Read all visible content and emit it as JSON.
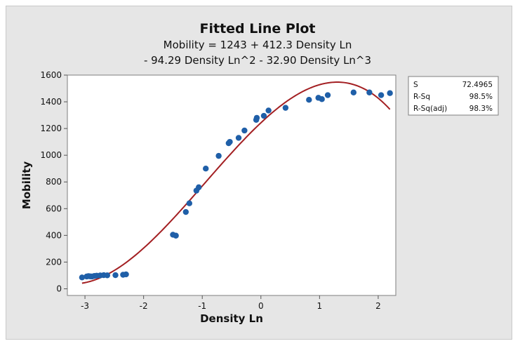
{
  "chart_data": {
    "type": "scatter",
    "title": "Fitted Line Plot",
    "subtitle_lines": [
      "Mobility = 1243 + 412.3 Density Ln",
      "- 94.29 Density Ln^2 - 32.90 Density Ln^3"
    ],
    "xlabel": "Density Ln",
    "ylabel": "Mobility",
    "xlim": [
      -3.3,
      2.3
    ],
    "ylim": [
      -50,
      1600
    ],
    "xticks": [
      -3,
      -2,
      -1,
      0,
      1,
      2
    ],
    "yticks": [
      0,
      200,
      400,
      600,
      800,
      1000,
      1200,
      1400,
      1600
    ],
    "grid": false,
    "fit": {
      "intercept": 1243,
      "b1": 412.3,
      "b2": -94.29,
      "b3": -32.9,
      "x_range": [
        -3.05,
        2.2
      ],
      "color": "#a31f22"
    },
    "series": [
      {
        "color": "#1f5fa8",
        "points": [
          [
            -3.05,
            85
          ],
          [
            -2.97,
            92
          ],
          [
            -2.94,
            95
          ],
          [
            -2.91,
            93
          ],
          [
            -2.88,
            92
          ],
          [
            -2.84,
            96
          ],
          [
            -2.8,
            98
          ],
          [
            -2.74,
            100
          ],
          [
            -2.68,
            102
          ],
          [
            -2.62,
            101
          ],
          [
            -2.48,
            102
          ],
          [
            -2.35,
            105
          ],
          [
            -2.3,
            108
          ],
          [
            -1.5,
            405
          ],
          [
            -1.45,
            398
          ],
          [
            -1.28,
            575
          ],
          [
            -1.22,
            640
          ],
          [
            -1.1,
            735
          ],
          [
            -1.06,
            760
          ],
          [
            -0.94,
            900
          ],
          [
            -0.72,
            995
          ],
          [
            -0.55,
            1090
          ],
          [
            -0.53,
            1100
          ],
          [
            -0.38,
            1130
          ],
          [
            -0.28,
            1185
          ],
          [
            -0.08,
            1265
          ],
          [
            -0.07,
            1280
          ],
          [
            0.05,
            1295
          ],
          [
            0.13,
            1335
          ],
          [
            0.42,
            1355
          ],
          [
            0.82,
            1415
          ],
          [
            0.98,
            1430
          ],
          [
            1.04,
            1420
          ],
          [
            1.14,
            1450
          ],
          [
            1.58,
            1470
          ],
          [
            1.85,
            1470
          ],
          [
            2.05,
            1450
          ],
          [
            2.2,
            1465
          ]
        ]
      }
    ]
  },
  "stats": [
    {
      "label": "S",
      "value": "72.4965"
    },
    {
      "label": "R-Sq",
      "value": "98.5%"
    },
    {
      "label": "R-Sq(adj)",
      "value": "98.3%"
    }
  ]
}
